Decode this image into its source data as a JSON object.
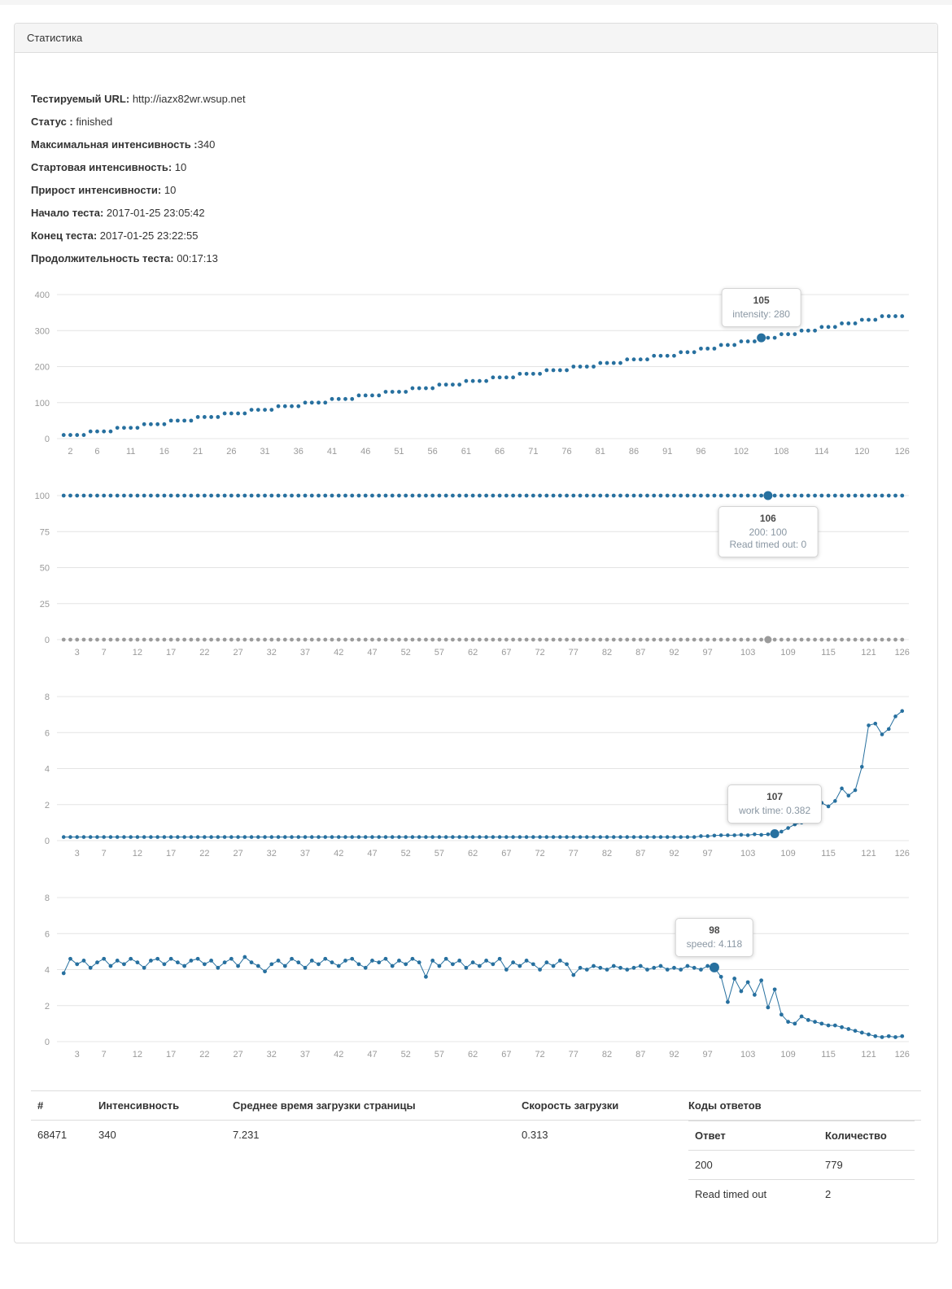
{
  "panel": {
    "title": "Статистика"
  },
  "info": [
    {
      "label": "Тестируемый URL: ",
      "value": "http://iazx82wr.wsup.net"
    },
    {
      "label": "Статус : ",
      "value": "finished"
    },
    {
      "label": "Максимальная интенсивность :",
      "value": "340"
    },
    {
      "label": "Стартовая интенсивность: ",
      "value": "10"
    },
    {
      "label": "Прирост интенсивности: ",
      "value": "10"
    },
    {
      "label": "Начало теста: ",
      "value": "2017-01-25 23:05:42"
    },
    {
      "label": "Конец теста: ",
      "value": "2017-01-25 23:22:55"
    },
    {
      "label": "Продолжительность теста: ",
      "value": "00:17:13"
    }
  ],
  "summary_table": {
    "headers": [
      "#",
      "Интенсивность",
      "Среднее время загрузки страницы",
      "Скорость загрузки",
      "Коды ответов"
    ],
    "row": {
      "id": "68471",
      "intensity": "340",
      "avg_load_time": "7.231",
      "load_speed": "0.313"
    },
    "codes": {
      "headers": [
        "Ответ",
        "Количество"
      ],
      "rows": [
        {
          "code": "200",
          "count": "779"
        },
        {
          "code": "Read timed out",
          "count": "2"
        }
      ]
    }
  },
  "colors": {
    "accent_blue": "#27709f",
    "muted_gray": "#9b9b9b",
    "grid": "#e4e4e4",
    "tick_label": "#9a9a9a"
  },
  "chart_data": [
    {
      "name": "intensity-chart",
      "type": "scatter",
      "title": "",
      "xlabel": "",
      "ylabel": "",
      "ylim": [
        0,
        400
      ],
      "yticks": [
        0,
        100,
        200,
        300,
        400
      ],
      "xticks": [
        2,
        6,
        11,
        16,
        21,
        26,
        31,
        36,
        41,
        46,
        51,
        56,
        61,
        66,
        71,
        76,
        81,
        86,
        91,
        96,
        102,
        108,
        114,
        120,
        126
      ],
      "grid": "horizontal",
      "legend": "none",
      "series": [
        {
          "name": "intensity",
          "color": "#27709f",
          "line": false,
          "dot": 2.4,
          "highlight_x": 105,
          "highlight_r": 5.5,
          "values": [
            10,
            10,
            10,
            10,
            20,
            20,
            20,
            20,
            30,
            30,
            30,
            30,
            40,
            40,
            40,
            40,
            50,
            50,
            50,
            50,
            60,
            60,
            60,
            60,
            70,
            70,
            70,
            70,
            80,
            80,
            80,
            80,
            90,
            90,
            90,
            90,
            100,
            100,
            100,
            100,
            110,
            110,
            110,
            110,
            120,
            120,
            120,
            120,
            130,
            130,
            130,
            130,
            140,
            140,
            140,
            140,
            150,
            150,
            150,
            150,
            160,
            160,
            160,
            160,
            170,
            170,
            170,
            170,
            180,
            180,
            180,
            180,
            190,
            190,
            190,
            190,
            200,
            200,
            200,
            200,
            210,
            210,
            210,
            210,
            220,
            220,
            220,
            220,
            230,
            230,
            230,
            230,
            240,
            240,
            240,
            250,
            250,
            250,
            260,
            260,
            260,
            270,
            270,
            270,
            280,
            280,
            280,
            290,
            290,
            290,
            300,
            300,
            300,
            310,
            310,
            310,
            320,
            320,
            320,
            330,
            330,
            330,
            340,
            340,
            340,
            340
          ]
        }
      ],
      "tooltip": {
        "x": 105,
        "series": 0,
        "placement": "above",
        "title": "105",
        "lines": [
          "intensity: 280"
        ]
      }
    },
    {
      "name": "response-codes-chart",
      "type": "scatter",
      "title": "",
      "xlabel": "",
      "ylabel": "",
      "ylim": [
        0,
        100
      ],
      "yticks": [
        0,
        25,
        50,
        75,
        100
      ],
      "xticks": [
        3,
        7,
        12,
        17,
        22,
        27,
        32,
        37,
        42,
        47,
        52,
        57,
        62,
        67,
        72,
        77,
        82,
        87,
        92,
        97,
        103,
        109,
        115,
        121,
        126
      ],
      "grid": "horizontal",
      "legend": "none",
      "series": [
        {
          "name": "200",
          "color": "#27709f",
          "line": false,
          "dot": 2.4,
          "highlight_x": 106,
          "highlight_r": 5.5,
          "values": [
            100,
            100,
            100,
            100,
            100,
            100,
            100,
            100,
            100,
            100,
            100,
            100,
            100,
            100,
            100,
            100,
            100,
            100,
            100,
            100,
            100,
            100,
            100,
            100,
            100,
            100,
            100,
            100,
            100,
            100,
            100,
            100,
            100,
            100,
            100,
            100,
            100,
            100,
            100,
            100,
            100,
            100,
            100,
            100,
            100,
            100,
            100,
            100,
            100,
            100,
            100,
            100,
            100,
            100,
            100,
            100,
            100,
            100,
            100,
            100,
            100,
            100,
            100,
            100,
            100,
            100,
            100,
            100,
            100,
            100,
            100,
            100,
            100,
            100,
            100,
            100,
            100,
            100,
            100,
            100,
            100,
            100,
            100,
            100,
            100,
            100,
            100,
            100,
            100,
            100,
            100,
            100,
            100,
            100,
            100,
            100,
            100,
            100,
            100,
            100,
            100,
            100,
            100,
            100,
            100,
            100,
            100,
            100,
            100,
            100,
            100,
            100,
            100,
            100,
            100,
            100,
            100,
            100,
            100,
            100,
            100,
            100,
            100,
            100,
            100,
            100
          ]
        },
        {
          "name": "Read timed out",
          "color": "#9b9b9b",
          "line": false,
          "dot": 2.4,
          "highlight_x": 106,
          "highlight_r": 4.5,
          "values": [
            0,
            0,
            0,
            0,
            0,
            0,
            0,
            0,
            0,
            0,
            0,
            0,
            0,
            0,
            0,
            0,
            0,
            0,
            0,
            0,
            0,
            0,
            0,
            0,
            0,
            0,
            0,
            0,
            0,
            0,
            0,
            0,
            0,
            0,
            0,
            0,
            0,
            0,
            0,
            0,
            0,
            0,
            0,
            0,
            0,
            0,
            0,
            0,
            0,
            0,
            0,
            0,
            0,
            0,
            0,
            0,
            0,
            0,
            0,
            0,
            0,
            0,
            0,
            0,
            0,
            0,
            0,
            0,
            0,
            0,
            0,
            0,
            0,
            0,
            0,
            0,
            0,
            0,
            0,
            0,
            0,
            0,
            0,
            0,
            0,
            0,
            0,
            0,
            0,
            0,
            0,
            0,
            0,
            0,
            0,
            0,
            0,
            0,
            0,
            0,
            0,
            0,
            0,
            0,
            0,
            0,
            0,
            0,
            0,
            0,
            0,
            0,
            0,
            0,
            0,
            0,
            0,
            0,
            0,
            0,
            0,
            0,
            0,
            0,
            0,
            0
          ]
        }
      ],
      "tooltip": {
        "x": 106,
        "series": 0,
        "placement": "below",
        "title": "106",
        "lines": [
          "200: 100",
          "Read timed out: 0"
        ]
      }
    },
    {
      "name": "work-time-chart",
      "type": "scatter",
      "title": "",
      "xlabel": "",
      "ylabel": "",
      "ylim": [
        0,
        8
      ],
      "yticks": [
        0,
        2,
        4,
        6,
        8
      ],
      "xticks": [
        3,
        7,
        12,
        17,
        22,
        27,
        32,
        37,
        42,
        47,
        52,
        57,
        62,
        67,
        72,
        77,
        82,
        87,
        92,
        97,
        103,
        109,
        115,
        121,
        126
      ],
      "grid": "horizontal",
      "legend": "none",
      "series": [
        {
          "name": "work time",
          "color": "#27709f",
          "line": true,
          "dot": 2.3,
          "highlight_x": 107,
          "highlight_r": 5.5,
          "values": [
            0.2,
            0.2,
            0.2,
            0.2,
            0.2,
            0.2,
            0.2,
            0.2,
            0.2,
            0.2,
            0.2,
            0.2,
            0.2,
            0.2,
            0.2,
            0.2,
            0.2,
            0.2,
            0.2,
            0.2,
            0.2,
            0.2,
            0.2,
            0.2,
            0.2,
            0.2,
            0.2,
            0.2,
            0.2,
            0.2,
            0.2,
            0.2,
            0.2,
            0.2,
            0.2,
            0.2,
            0.2,
            0.2,
            0.2,
            0.2,
            0.2,
            0.2,
            0.2,
            0.2,
            0.2,
            0.2,
            0.2,
            0.2,
            0.2,
            0.2,
            0.2,
            0.2,
            0.2,
            0.2,
            0.2,
            0.2,
            0.2,
            0.2,
            0.2,
            0.2,
            0.2,
            0.2,
            0.2,
            0.2,
            0.2,
            0.2,
            0.2,
            0.2,
            0.2,
            0.2,
            0.2,
            0.2,
            0.2,
            0.2,
            0.2,
            0.2,
            0.2,
            0.2,
            0.2,
            0.2,
            0.2,
            0.2,
            0.2,
            0.2,
            0.2,
            0.2,
            0.2,
            0.2,
            0.2,
            0.2,
            0.2,
            0.2,
            0.2,
            0.2,
            0.2,
            0.25,
            0.25,
            0.28,
            0.3,
            0.3,
            0.3,
            0.32,
            0.3,
            0.35,
            0.32,
            0.35,
            0.382,
            0.5,
            0.7,
            0.9,
            1.0,
            1.4,
            1.9,
            2.1,
            1.9,
            2.2,
            2.9,
            2.5,
            2.8,
            4.1,
            6.4,
            6.5,
            5.9,
            6.2,
            6.9,
            7.2
          ]
        }
      ],
      "tooltip": {
        "x": 107,
        "series": 0,
        "placement": "above",
        "title": "107",
        "lines": [
          "work time: 0.382"
        ]
      }
    },
    {
      "name": "speed-chart",
      "type": "scatter",
      "title": "",
      "xlabel": "",
      "ylabel": "",
      "ylim": [
        0,
        8
      ],
      "yticks": [
        0,
        2,
        4,
        6,
        8
      ],
      "xticks": [
        3,
        7,
        12,
        17,
        22,
        27,
        32,
        37,
        42,
        47,
        52,
        57,
        62,
        67,
        72,
        77,
        82,
        87,
        92,
        97,
        103,
        109,
        115,
        121,
        126
      ],
      "grid": "horizontal",
      "legend": "none",
      "series": [
        {
          "name": "speed",
          "color": "#27709f",
          "line": true,
          "dot": 2.4,
          "highlight_x": 98,
          "highlight_r": 6,
          "values": [
            3.8,
            4.6,
            4.3,
            4.5,
            4.1,
            4.4,
            4.6,
            4.2,
            4.5,
            4.3,
            4.6,
            4.4,
            4.1,
            4.5,
            4.6,
            4.3,
            4.6,
            4.4,
            4.2,
            4.5,
            4.6,
            4.3,
            4.5,
            4.1,
            4.4,
            4.6,
            4.2,
            4.7,
            4.4,
            4.2,
            3.9,
            4.3,
            4.5,
            4.2,
            4.6,
            4.4,
            4.1,
            4.5,
            4.3,
            4.6,
            4.4,
            4.2,
            4.5,
            4.6,
            4.3,
            4.1,
            4.5,
            4.4,
            4.6,
            4.2,
            4.5,
            4.3,
            4.6,
            4.4,
            3.6,
            4.5,
            4.2,
            4.6,
            4.3,
            4.5,
            4.1,
            4.4,
            4.2,
            4.5,
            4.3,
            4.6,
            4.0,
            4.4,
            4.2,
            4.5,
            4.3,
            4.0,
            4.4,
            4.2,
            4.5,
            4.3,
            3.7,
            4.1,
            4.0,
            4.2,
            4.1,
            4.0,
            4.2,
            4.1,
            4.0,
            4.1,
            4.2,
            4.0,
            4.1,
            4.2,
            4.0,
            4.1,
            4.0,
            4.2,
            4.1,
            4.0,
            4.2,
            4.118,
            3.6,
            2.2,
            3.5,
            2.8,
            3.3,
            2.6,
            3.4,
            1.9,
            2.9,
            1.5,
            1.1,
            1.0,
            1.4,
            1.2,
            1.1,
            1.0,
            0.9,
            0.9,
            0.8,
            0.7,
            0.6,
            0.5,
            0.4,
            0.3,
            0.25,
            0.3,
            0.25,
            0.3
          ]
        }
      ],
      "tooltip": {
        "x": 98,
        "series": 0,
        "placement": "above",
        "title": "98",
        "lines": [
          "speed: 4.118"
        ]
      }
    }
  ]
}
